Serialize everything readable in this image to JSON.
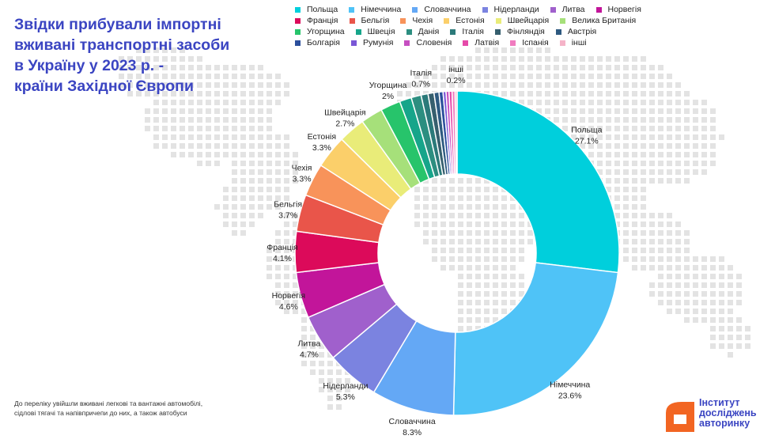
{
  "title_lines": [
    "Звідки прибували імпортні",
    "вживані транспортні засоби",
    "в Україну у 2023 р. -",
    "країни Західної Європи"
  ],
  "footnote_lines": [
    "До переліку увійшли вживані легкові та вантажні автомобілі,",
    "сідлові тягачі та напівпричепи до них, а також автобуси"
  ],
  "logo": {
    "lines": [
      "Інститут",
      "досліджень",
      "авторинку"
    ],
    "color": "#3b45c2",
    "icon_color": "#f26522"
  },
  "colors": {
    "title": "#3b45c2",
    "map_dots": "#e3e3e3"
  },
  "chart_data": {
    "type": "pie",
    "donut": true,
    "unit": "%",
    "legend_position": "top",
    "slices": [
      {
        "name": "Польща",
        "value": 27.1,
        "label": "27.1%",
        "color": "#00cfdc",
        "show_label": true
      },
      {
        "name": "Німеччина",
        "value": 23.6,
        "label": "23.6%",
        "color": "#4fc3f7",
        "show_label": true
      },
      {
        "name": "Словаччина",
        "value": 8.3,
        "label": "8.3%",
        "color": "#64a8f5",
        "show_label": true
      },
      {
        "name": "Нідерланди",
        "value": 5.3,
        "label": "5.3%",
        "color": "#7b83e0",
        "show_label": true
      },
      {
        "name": "Литва",
        "value": 4.7,
        "label": "4.7%",
        "color": "#a060cc",
        "show_label": true
      },
      {
        "name": "Норвегія",
        "value": 4.6,
        "label": "4.6%",
        "color": "#c2159a",
        "show_label": true
      },
      {
        "name": "Франція",
        "value": 4.1,
        "label": "4.1%",
        "color": "#dc0a5a",
        "show_label": true
      },
      {
        "name": "Бельгія",
        "value": 3.7,
        "label": "3.7%",
        "color": "#e9554a",
        "show_label": true
      },
      {
        "name": "Чехія",
        "value": 3.3,
        "label": "3.3%",
        "color": "#f8935a",
        "show_label": true
      },
      {
        "name": "Естонія",
        "value": 3.3,
        "label": "3.3%",
        "color": "#fbcf6a",
        "show_label": true
      },
      {
        "name": "Швейцарія",
        "value": 2.7,
        "label": "2.7%",
        "color": "#e9ec79",
        "show_label": true
      },
      {
        "name": "Велика Британія",
        "value": 2.2,
        "label": "",
        "color": "#a6e07a",
        "show_label": false
      },
      {
        "name": "Угорщина",
        "value": 2.0,
        "label": "2%",
        "color": "#27c46b",
        "show_label": true
      },
      {
        "name": "Швеція",
        "value": 1.2,
        "label": "",
        "color": "#16a58a",
        "show_label": false
      },
      {
        "name": "Данія",
        "value": 1.0,
        "label": "",
        "color": "#2c8e80",
        "show_label": false
      },
      {
        "name": "Італія",
        "value": 0.7,
        "label": "0.7%",
        "color": "#2b7a7a",
        "show_label": true
      },
      {
        "name": "Фінляндія",
        "value": 0.6,
        "label": "",
        "color": "#365f6e",
        "show_label": false
      },
      {
        "name": "Австрія",
        "value": 0.5,
        "label": "",
        "color": "#2e5a80",
        "show_label": false
      },
      {
        "name": "Болгарія",
        "value": 0.4,
        "label": "",
        "color": "#2b4f9c",
        "show_label": false
      },
      {
        "name": "Румунія",
        "value": 0.3,
        "label": "",
        "color": "#7a57d6",
        "show_label": false
      },
      {
        "name": "Словенія",
        "value": 0.3,
        "label": "",
        "color": "#c64fc1",
        "show_label": false
      },
      {
        "name": "Латвія",
        "value": 0.3,
        "label": "",
        "color": "#e54aa9",
        "show_label": false
      },
      {
        "name": "Іспанія",
        "value": 0.3,
        "label": "",
        "color": "#f07bbf",
        "show_label": false
      },
      {
        "name": "інші",
        "value": 0.2,
        "label": "0.2%",
        "color": "#f5b3c8",
        "show_label": true
      }
    ]
  }
}
